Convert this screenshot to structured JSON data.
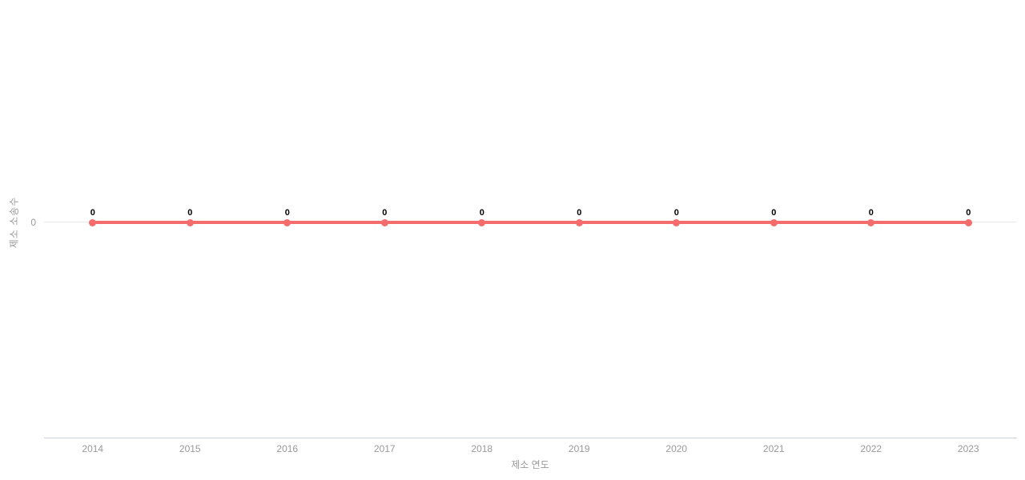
{
  "chart_data": {
    "type": "line",
    "title": "",
    "x": [
      "2014",
      "2015",
      "2016",
      "2017",
      "2018",
      "2019",
      "2020",
      "2021",
      "2022",
      "2023"
    ],
    "series": [
      {
        "name": "제소 소송수",
        "values": [
          0,
          0,
          0,
          0,
          0,
          0,
          0,
          0,
          0,
          0
        ],
        "point_labels": [
          "0",
          "0",
          "0",
          "0",
          "0",
          "0",
          "0",
          "0",
          "0",
          "0"
        ]
      }
    ],
    "xlabel": "제소 연도",
    "ylabel": "제소 소송수",
    "y_ticks": [
      "0"
    ],
    "ylim": [
      -1,
      1
    ],
    "grid": "horizontal-zero-line-only",
    "legend": "none",
    "colors": {
      "line": "#f56c6c",
      "point": "#f56c6c",
      "gridline": "#e8e8e8",
      "axis_line": "#ccd2dd",
      "tick_text": "#999999",
      "point_label_text": "#000000"
    }
  }
}
